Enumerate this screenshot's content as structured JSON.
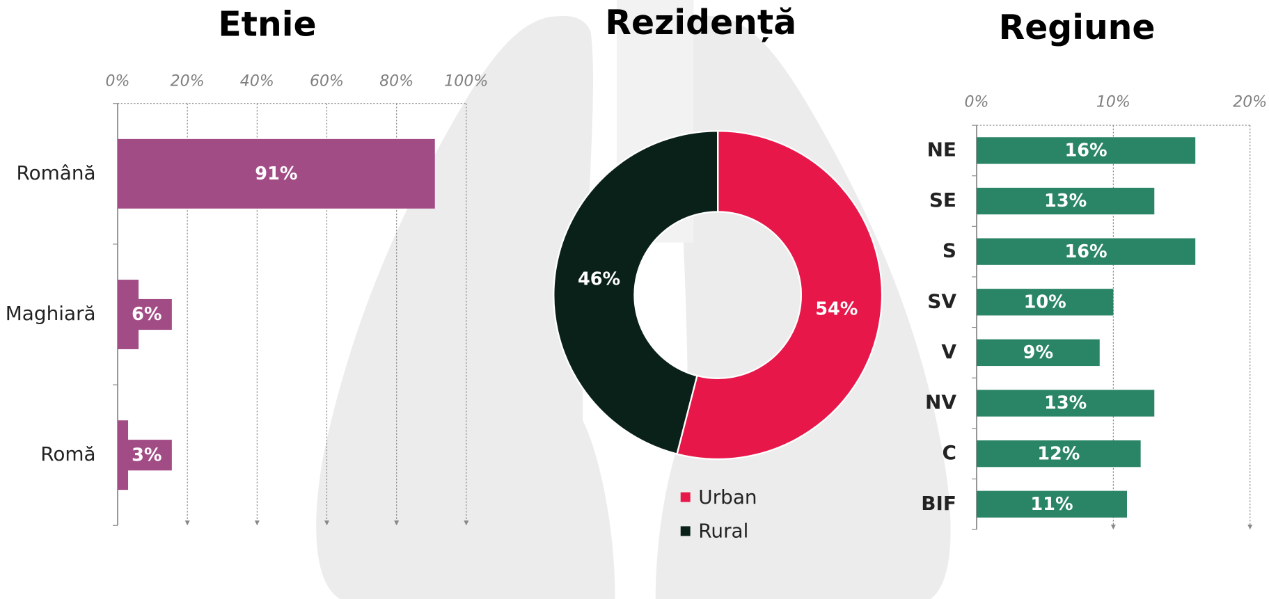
{
  "chart_data": [
    {
      "type": "hbar",
      "title": "Etnie",
      "categories": [
        "Română",
        "Maghiară",
        "Romă"
      ],
      "values": [
        91,
        6,
        3
      ],
      "value_labels": [
        "91%",
        "6%",
        "3%"
      ],
      "color": "#a24c86",
      "xlim": [
        0,
        100
      ],
      "xticks": [
        {
          "value": 0,
          "label": "0%"
        },
        {
          "value": 20,
          "label": "20%"
        },
        {
          "value": 40,
          "label": "40%"
        },
        {
          "value": 60,
          "label": "60%"
        },
        {
          "value": 80,
          "label": "80%"
        },
        {
          "value": 100,
          "label": "100%"
        }
      ],
      "grid": true
    },
    {
      "type": "donut",
      "title": "Rezidență",
      "categories": [
        "Urban",
        "Rural"
      ],
      "values": [
        54,
        46
      ],
      "value_labels": [
        "54%",
        "46%"
      ],
      "colors": [
        "#e8174a",
        "#0a2119"
      ],
      "legend": "bottom"
    },
    {
      "type": "hbar",
      "title": "Regiune",
      "categories": [
        "NE",
        "SE",
        "S",
        "SV",
        "V",
        "NV",
        "C",
        "BIF"
      ],
      "values": [
        16,
        13,
        16,
        10,
        9,
        13,
        12,
        11
      ],
      "value_labels": [
        "16%",
        "13%",
        "16%",
        "10%",
        "9%",
        "13%",
        "12%",
        "11%"
      ],
      "color": "#2a8566",
      "xlim": [
        0,
        20
      ],
      "xticks": [
        {
          "value": 0,
          "label": "0%"
        },
        {
          "value": 10,
          "label": "10%"
        },
        {
          "value": 20,
          "label": "20%"
        }
      ],
      "grid": true
    }
  ]
}
